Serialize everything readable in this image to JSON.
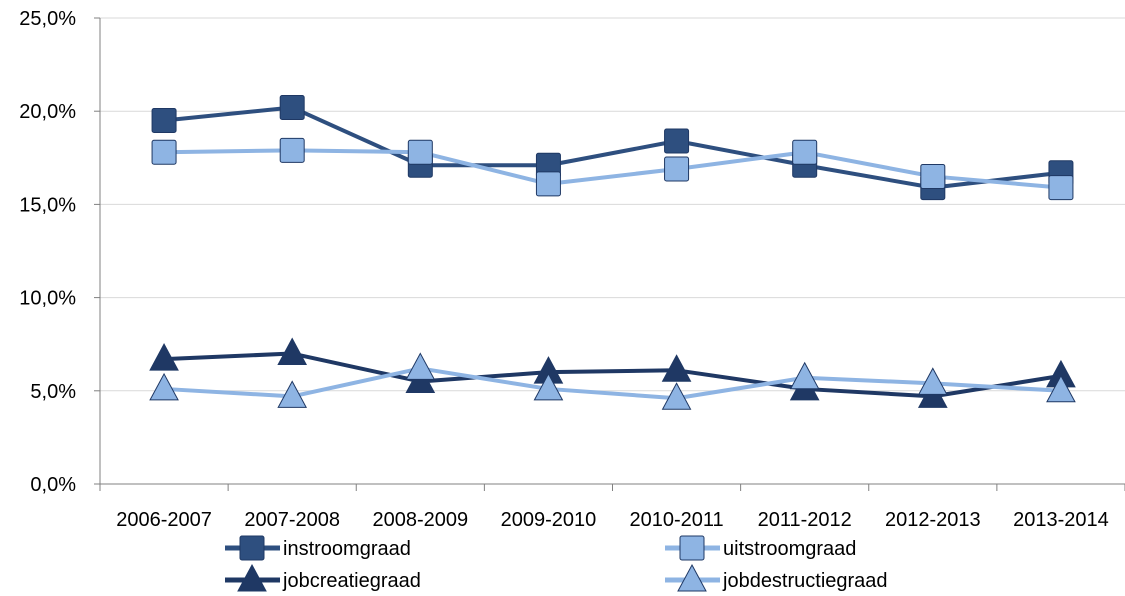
{
  "chart_data": {
    "type": "line",
    "categories": [
      "2006-2007",
      "2007-2008",
      "2008-2009",
      "2009-2010",
      "2010-2011",
      "2011-2012",
      "2012-2013",
      "2013-2014"
    ],
    "ylim": [
      0,
      25
    ],
    "yticks": [
      0,
      5,
      10,
      15,
      20,
      25
    ],
    "ytick_labels": [
      "0,0%",
      "5,0%",
      "10,0%",
      "15,0%",
      "20,0%",
      "25,0%"
    ],
    "grid": "horizontal",
    "legend_position": "bottom",
    "series": [
      {
        "name": "instroomgraad",
        "color": "#2e4f7f",
        "marker": "square",
        "values": [
          19.5,
          20.2,
          17.1,
          17.1,
          18.4,
          17.1,
          15.9,
          16.7
        ]
      },
      {
        "name": "uitstroomgraad",
        "color": "#8eb4e3",
        "marker": "square",
        "values": [
          17.8,
          17.9,
          17.8,
          16.1,
          16.9,
          17.8,
          16.5,
          15.9
        ]
      },
      {
        "name": "jobcreatiegraad",
        "color": "#1f3864",
        "marker": "triangle",
        "values": [
          6.7,
          7.0,
          5.5,
          6.0,
          6.1,
          5.1,
          4.7,
          5.8
        ]
      },
      {
        "name": "jobdestructiegraad",
        "color": "#8eb4e3",
        "marker": "triangle",
        "values": [
          5.1,
          4.7,
          6.2,
          5.1,
          4.6,
          5.7,
          5.4,
          5.0
        ]
      }
    ]
  }
}
